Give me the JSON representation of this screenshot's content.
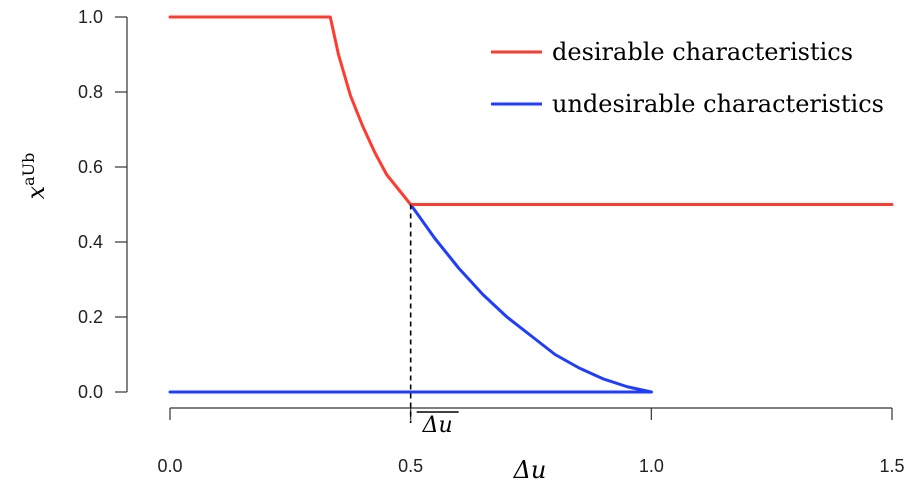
{
  "chart_data": {
    "type": "line",
    "xlabel": "Δu",
    "ylabel_base": "x",
    "ylabel_sup": "aUb",
    "xlim": [
      0,
      1.5
    ],
    "ylim": [
      0,
      1
    ],
    "xticks": [
      "0.0",
      "0.5",
      "1.0",
      "1.5"
    ],
    "yticks": [
      "0.0",
      "0.2",
      "0.4",
      "0.6",
      "0.8",
      "1.0"
    ],
    "grid": false,
    "legend_position": "top-right",
    "series": [
      {
        "name": "desirable characteristics",
        "color": "#ff3b2f",
        "x": [
          0,
          0.333,
          0.35,
          0.375,
          0.4,
          0.425,
          0.45,
          0.475,
          0.5,
          1.5
        ],
        "y": [
          1.0,
          1.0,
          0.9,
          0.79,
          0.71,
          0.64,
          0.58,
          0.54,
          0.5,
          0.5
        ]
      },
      {
        "name": "undesirable characteristics",
        "color": "#1f3dff",
        "x": [
          0,
          1.0,
          0.5,
          0.55,
          0.6,
          0.65,
          0.7,
          0.75,
          0.8,
          0.85,
          0.9,
          0.95,
          1.0
        ],
        "y": [
          0,
          0,
          0.5,
          0.41,
          0.33,
          0.26,
          0.2,
          0.15,
          0.1,
          0.064,
          0.035,
          0.014,
          0.0
        ],
        "segments": [
          [
            0,
            1
          ],
          [
            2,
            12
          ]
        ]
      }
    ],
    "annotation": {
      "label": "Δu",
      "x": 0.5,
      "y": 0.5,
      "overline": true
    }
  }
}
